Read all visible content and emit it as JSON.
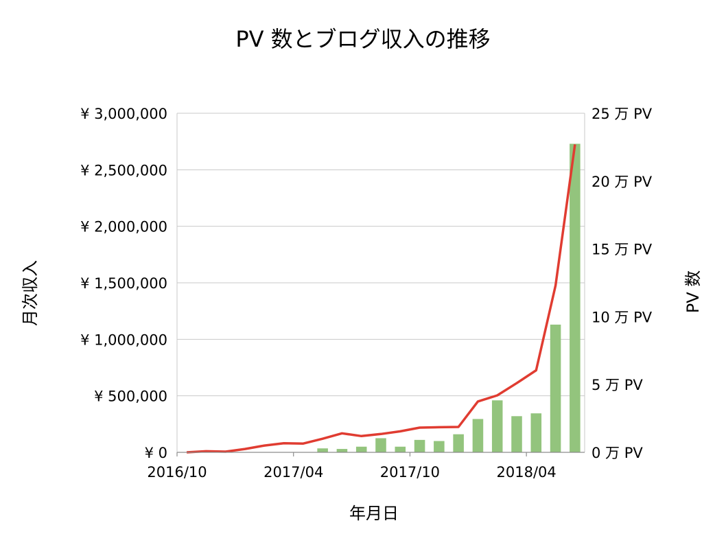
{
  "chart_data": {
    "type": "bar+line",
    "title": "PV 数とブログ収入の推移",
    "xlabel": "年月日",
    "ylabel_left": "月次収入",
    "ylabel_right": "PV 数",
    "x_tick_labels": [
      {
        "label": "2016/10",
        "index": 0
      },
      {
        "label": "2017/04",
        "index": 6
      },
      {
        "label": "2017/10",
        "index": 12
      },
      {
        "label": "2018/04",
        "index": 18
      }
    ],
    "categories": [
      "2016/10",
      "2016/11",
      "2016/12",
      "2017/01",
      "2017/02",
      "2017/03",
      "2017/04",
      "2017/05",
      "2017/06",
      "2017/07",
      "2017/08",
      "2017/09",
      "2017/10",
      "2017/11",
      "2017/12",
      "2018/01",
      "2018/02",
      "2018/03",
      "2018/04",
      "2018/05",
      "2018/06"
    ],
    "left_axis": {
      "ylim": [
        0,
        3000000
      ],
      "ticks": [
        0,
        500000,
        1000000,
        1500000,
        2000000,
        2500000,
        3000000
      ],
      "tick_labels": [
        "¥ 0",
        "¥ 500,000",
        "¥ 1,000,000",
        "¥ 1,500,000",
        "¥ 2,000,000",
        "¥ 2,500,000",
        "¥ 3,000,000"
      ]
    },
    "right_axis": {
      "ylim": [
        0,
        25
      ],
      "ticks": [
        0,
        5,
        10,
        15,
        20,
        25
      ],
      "tick_labels": [
        "0 万 PV",
        "5 万 PV",
        "10 万 PV",
        "15 万 PV",
        "20 万 PV",
        "25 万 PV"
      ]
    },
    "series": [
      {
        "name": "月次収入",
        "type": "bar",
        "axis": "left",
        "color": "#93c47d",
        "values": [
          0,
          0,
          0,
          0,
          0,
          0,
          0,
          35000,
          30000,
          50000,
          125000,
          50000,
          110000,
          100000,
          160000,
          295000,
          460000,
          320000,
          345000,
          1130000,
          2730000
        ]
      },
      {
        "name": "PV 数",
        "type": "line",
        "axis": "right",
        "color": "#e03c31",
        "values": [
          0,
          0.08,
          0.05,
          0.25,
          0.5,
          0.67,
          0.65,
          1.0,
          1.4,
          1.2,
          1.35,
          1.55,
          1.82,
          1.85,
          1.87,
          3.75,
          4.2,
          5.1,
          6.05,
          12.3,
          22.7
        ]
      }
    ]
  }
}
